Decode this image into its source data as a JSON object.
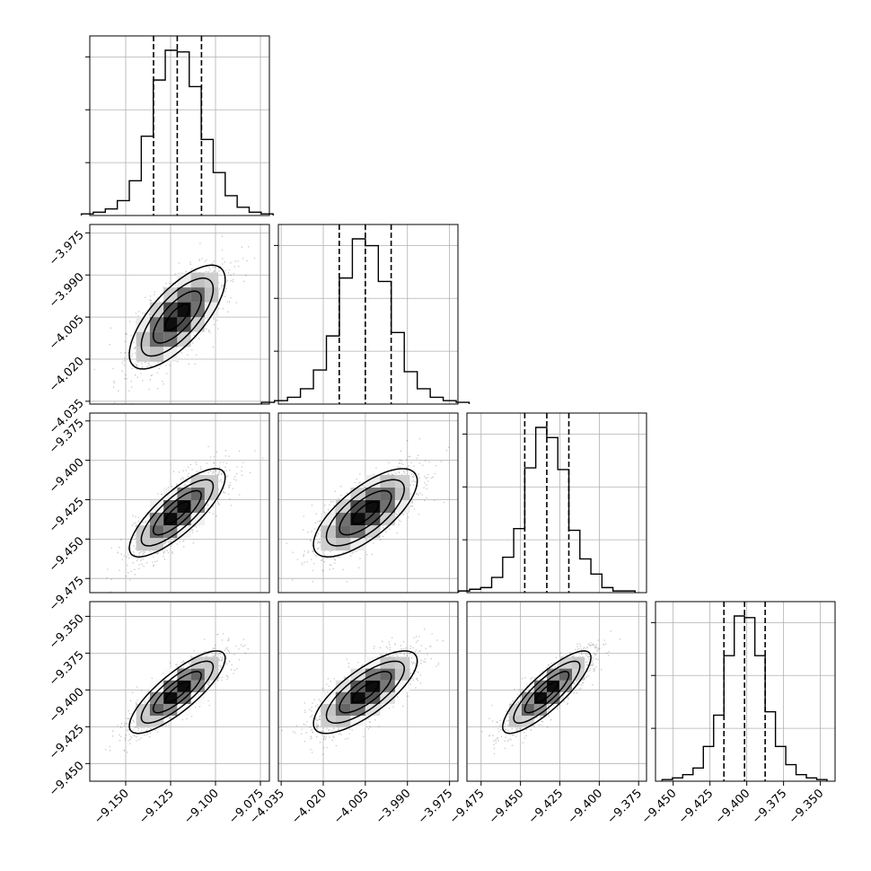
{
  "chart_data": {
    "type": "corner",
    "n_params": 4,
    "params": [
      {
        "range": [
          -9.17,
          -9.07
        ],
        "ticks": [
          -9.15,
          -9.125,
          -9.1,
          -9.075
        ],
        "tick_labels": [
          "−9.150",
          "−9.125",
          "−9.100",
          "−9.075"
        ]
      },
      {
        "range": [
          -4.036,
          -3.972
        ],
        "ticks": [
          -4.035,
          -4.02,
          -4.005,
          -3.99,
          -3.975
        ],
        "tick_labels": [
          "−4.035",
          "−4.020",
          "−4.005",
          "−3.990",
          "−3.975"
        ]
      },
      {
        "range": [
          -9.484,
          -9.37
        ],
        "ticks": [
          -9.475,
          -9.45,
          -9.425,
          -9.4,
          -9.375
        ],
        "tick_labels": [
          "−9.475",
          "−9.450",
          "−9.425",
          "−9.400",
          "−9.375"
        ]
      },
      {
        "range": [
          -9.462,
          -9.34
        ],
        "ticks": [
          -9.45,
          -9.425,
          -9.4,
          -9.375,
          -9.35
        ],
        "tick_labels": [
          "−9.450",
          "−9.425",
          "−9.400",
          "−9.375",
          "−9.350"
        ]
      }
    ],
    "quantiles": [
      [
        -9.1345,
        -9.1213,
        -9.1078
      ],
      [
        -4.0143,
        -4.005,
        -3.9958
      ],
      [
        -9.4473,
        -9.4333,
        -9.4193
      ],
      [
        -9.4155,
        -9.4015,
        -9.3875
      ]
    ],
    "histograms": [
      {
        "counts": [
          1,
          2,
          4,
          9,
          21,
          48,
          82,
          100,
          99,
          78,
          46,
          26,
          12,
          5,
          2,
          1
        ]
      },
      {
        "counts": [
          1,
          2,
          4,
          9,
          20,
          40,
          74,
          97,
          93,
          72,
          42,
          19,
          9,
          4,
          2,
          1
        ]
      },
      {
        "counts": [
          1,
          2,
          3,
          9,
          21,
          38,
          74,
          98,
          92,
          73,
          37,
          20,
          11,
          3,
          1,
          1
        ]
      },
      {
        "counts": [
          1,
          2,
          4,
          8,
          21,
          40,
          76,
          100,
          99,
          76,
          42,
          21,
          10,
          4,
          2,
          1
        ]
      }
    ],
    "correlations": {
      "1-0": 0.72,
      "2-0": 0.8,
      "2-1": 0.72,
      "3-0": 0.82,
      "3-1": 0.76,
      "3-2": 0.84
    },
    "histogram_color": "#000000",
    "contour_color": "#000000",
    "grid": true
  }
}
